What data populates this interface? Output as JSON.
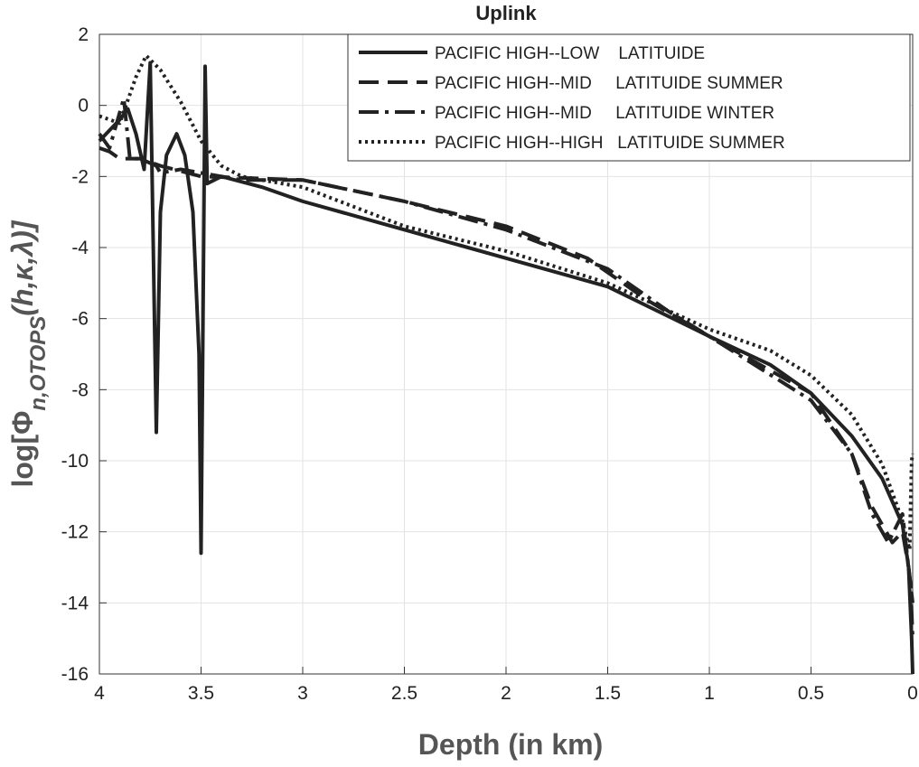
{
  "chart_data": {
    "type": "line",
    "title": "Uplink",
    "xlabel": "Depth (in km)",
    "ylabel": {
      "main": "log[Φ",
      "sub": "n,OTOPS",
      "args": "(h,κ,λ)]"
    },
    "xlim": [
      4,
      0
    ],
    "ylim": [
      -16,
      2
    ],
    "xticks": [
      4,
      3.5,
      3,
      2.5,
      2,
      1.5,
      1,
      0.5,
      0
    ],
    "yticks": [
      2,
      0,
      -2,
      -4,
      -6,
      -8,
      -10,
      -12,
      -14,
      -16
    ],
    "grid": true,
    "legend": "northeast",
    "series": [
      {
        "name": "PACIFIC HIGH--LOW    LATITUIDE",
        "color": "#222222",
        "style": "solid",
        "x": [
          4,
          3.9,
          3.86,
          3.82,
          3.78,
          3.75,
          3.72,
          3.7,
          3.67,
          3.62,
          3.58,
          3.54,
          3.51,
          3.5,
          3.48,
          3.47,
          3.4,
          3.2,
          3.0,
          2.5,
          2.0,
          1.5,
          1.0,
          0.7,
          0.5,
          0.3,
          0.15,
          0.05,
          0.02,
          0.005,
          0
        ],
        "values": [
          -1.0,
          -0.4,
          -0.1,
          -0.8,
          -1.8,
          1.2,
          -9.2,
          -3,
          -1.4,
          -0.8,
          -1.4,
          -3,
          -7,
          -12.6,
          1.1,
          -2.2,
          -2.0,
          -2.3,
          -2.7,
          -3.5,
          -4.3,
          -5.1,
          -6.5,
          -7.3,
          -8.1,
          -9.3,
          -10.5,
          -11.8,
          -13,
          -15,
          -16
        ]
      },
      {
        "name": "PACIFIC HIGH--MID     LATITUIDE SUMMER",
        "color": "#222222",
        "style": "dashed",
        "x": [
          4,
          3.95,
          3.9,
          3.8,
          3.7,
          3.5,
          3.0,
          2.5,
          2.0,
          1.6,
          1.3,
          1.0,
          0.5,
          0.3,
          0.2,
          0.1,
          0.05,
          0.02,
          0
        ],
        "values": [
          -1.2,
          -1.3,
          -1.5,
          -1.5,
          -1.7,
          -2.0,
          -2.1,
          -2.7,
          -3.4,
          -4.3,
          -5.5,
          -6.5,
          -8.1,
          -9.8,
          -11.3,
          -12.3,
          -12,
          -13,
          -14
        ]
      },
      {
        "name": "PACIFIC HIGH--MID     LATITUIDE WINTER",
        "color": "#222222",
        "style": "dashdot",
        "x": [
          4,
          3.95,
          3.88,
          3.85,
          3.8,
          3.72,
          3.7,
          3.6,
          3.5,
          3.3,
          3.0,
          2.5,
          2.0,
          1.5,
          1.2,
          1.0,
          0.5,
          0.3,
          0.2,
          0.12,
          0.05,
          0.01,
          0
        ],
        "values": [
          -0.8,
          -1.2,
          0.2,
          -1.5,
          -1.5,
          -1.7,
          -1.9,
          -1.8,
          -1.9,
          -2.1,
          -2.1,
          -2.7,
          -3.5,
          -4.6,
          -5.8,
          -6.5,
          -8.3,
          -9.8,
          -11.5,
          -12.3,
          -11.5,
          -13.5,
          -15
        ]
      },
      {
        "name": "PACIFIC HIGH--HIGH   LATITUIDE SUMMER",
        "color": "#222222",
        "style": "dotted",
        "x": [
          4,
          3.9,
          3.82,
          3.77,
          3.7,
          3.6,
          3.5,
          3.4,
          3.3,
          3.0,
          2.5,
          2.0,
          1.5,
          1.0,
          0.7,
          0.5,
          0.3,
          0.15,
          0.05,
          0.015,
          0.005,
          0
        ],
        "values": [
          -0.3,
          -0.5,
          0.8,
          1.4,
          1.0,
          0.1,
          -1.0,
          -1.7,
          -2.0,
          -2.3,
          -3.4,
          -4.1,
          -5.0,
          -6.3,
          -6.9,
          -7.6,
          -8.7,
          -10.1,
          -11.7,
          -12.5,
          -10,
          -9.8
        ]
      }
    ]
  }
}
